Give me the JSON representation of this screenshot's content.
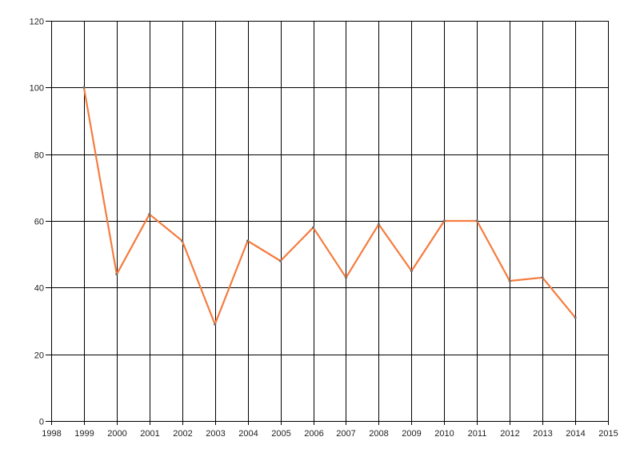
{
  "chart_data": {
    "type": "line",
    "x": [
      1999,
      2000,
      2001,
      2002,
      2003,
      2004,
      2005,
      2006,
      2007,
      2008,
      2009,
      2010,
      2011,
      2012,
      2013,
      2014
    ],
    "values": [
      100,
      44,
      62,
      54,
      29,
      54,
      48,
      58,
      43,
      59,
      45,
      60,
      60,
      42,
      43,
      31
    ],
    "xlim": [
      1998,
      2015
    ],
    "ylim": [
      0,
      120
    ],
    "x_ticks": [
      1998,
      1999,
      2000,
      2001,
      2002,
      2003,
      2004,
      2005,
      2006,
      2007,
      2008,
      2009,
      2010,
      2011,
      2012,
      2013,
      2014,
      2015
    ],
    "y_ticks": [
      0,
      20,
      40,
      60,
      80,
      100,
      120
    ],
    "grid": true,
    "legend_position": "none",
    "line_color": "#F57C3F",
    "marker_color": "#6B6B6B",
    "grid_color": "#000000",
    "tick_label_color": "#1F1F1F",
    "background_color": "#FFFFFF"
  }
}
